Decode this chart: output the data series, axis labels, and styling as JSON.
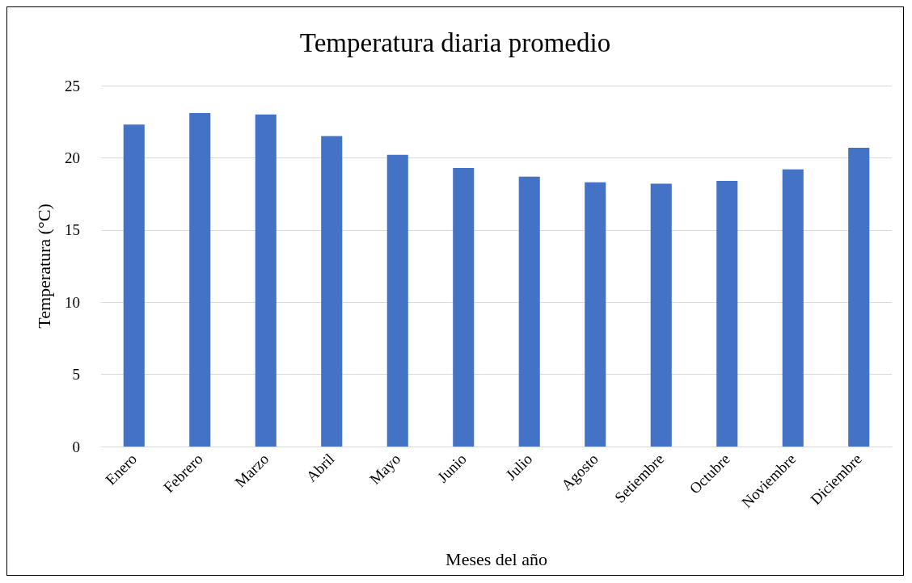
{
  "chart_data": {
    "type": "bar",
    "title": "Temperatura diaria promedio",
    "xlabel": "Meses del año",
    "ylabel": "Temperatura (°C)",
    "categories": [
      "Enero",
      "Febrero",
      "Marzo",
      "Abril",
      "Mayo",
      "Junio",
      "Julio",
      "Agosto",
      "Setiembre",
      "Octubre",
      "Noviembre",
      "Diciembre"
    ],
    "values": [
      22.3,
      23.1,
      23.0,
      21.5,
      20.2,
      19.3,
      18.7,
      18.3,
      18.2,
      18.4,
      19.2,
      20.7
    ],
    "color": "#4472c4",
    "ylim": [
      0,
      25
    ],
    "yticks": [
      0,
      5,
      10,
      15,
      20,
      25
    ],
    "grid": "y"
  }
}
